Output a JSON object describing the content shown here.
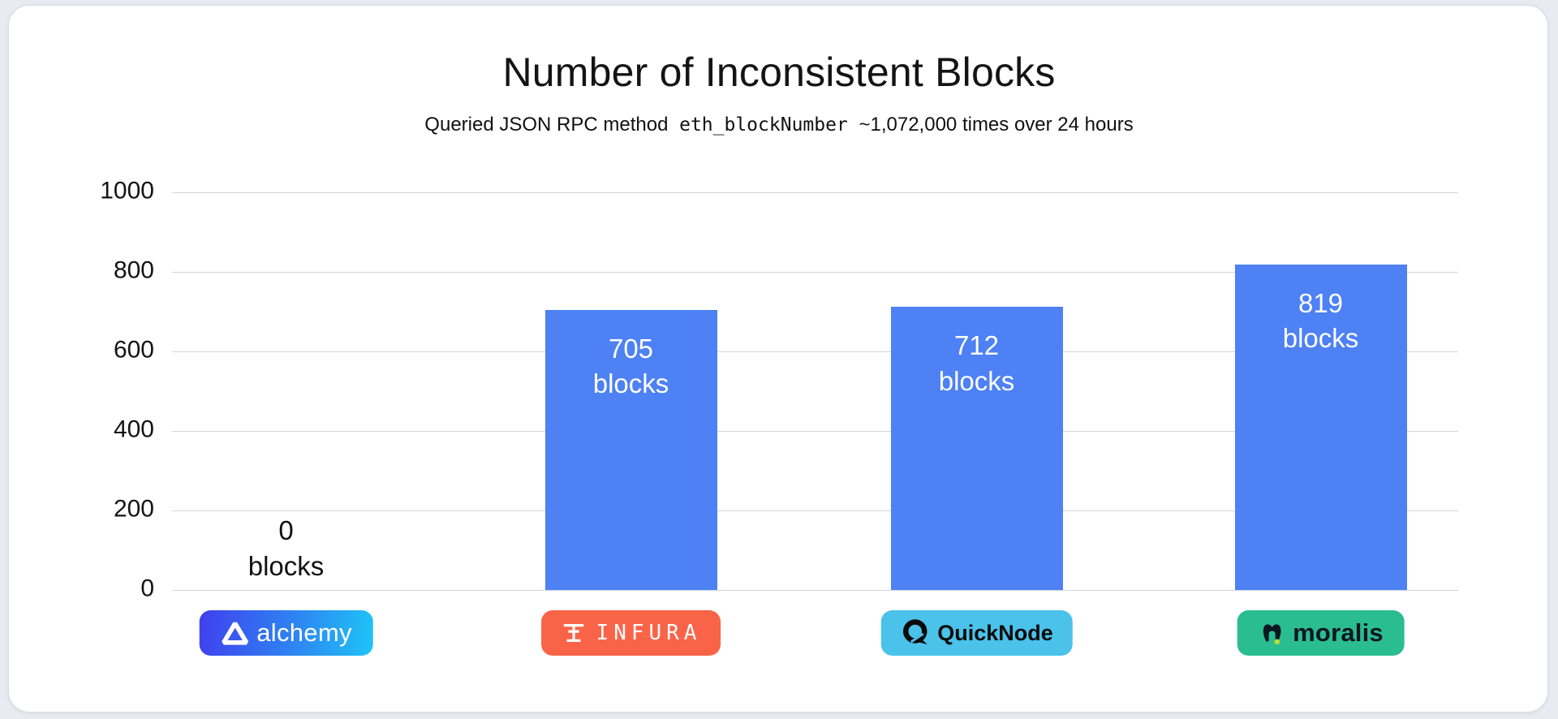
{
  "colors": {
    "page_bg": "#E8EBF1",
    "card_bg": "#FFFFFF",
    "grid": "#D2D5DA",
    "bar": "#4D81F4",
    "bar_label_text": "#FFFFFF",
    "zero_label_text": "#111111",
    "alchemy_gradient_start": "#3F40EE",
    "alchemy_gradient_end": "#1EC4F6",
    "infura_bg": "#F96449",
    "quicknode_bg": "#4AC2E9",
    "moralis_bg": "#2ABD90",
    "moralis_dot": "#C3DB2E"
  },
  "chart_data": {
    "type": "bar",
    "title": "Number of Inconsistent Blocks",
    "subtitle": {
      "prefix": "Queried JSON RPC method",
      "code": "eth_blockNumber",
      "suffix": "~1,072,000 times over 24 hours"
    },
    "categories": [
      "Alchemy",
      "Infura",
      "QuickNode",
      "Moralis"
    ],
    "values": [
      0,
      705,
      712,
      819
    ],
    "value_unit": "blocks",
    "ylim": [
      0,
      1000
    ],
    "yticks": [
      0,
      200,
      400,
      600,
      800,
      1000
    ],
    "grid": true,
    "legend": "none",
    "xlabel": "",
    "ylabel": ""
  },
  "badges": [
    {
      "name": "alchemy",
      "label": "alchemy"
    },
    {
      "name": "infura",
      "label": "INFURA"
    },
    {
      "name": "quicknode",
      "label": "QuickNode"
    },
    {
      "name": "moralis",
      "label": "moralis"
    }
  ]
}
